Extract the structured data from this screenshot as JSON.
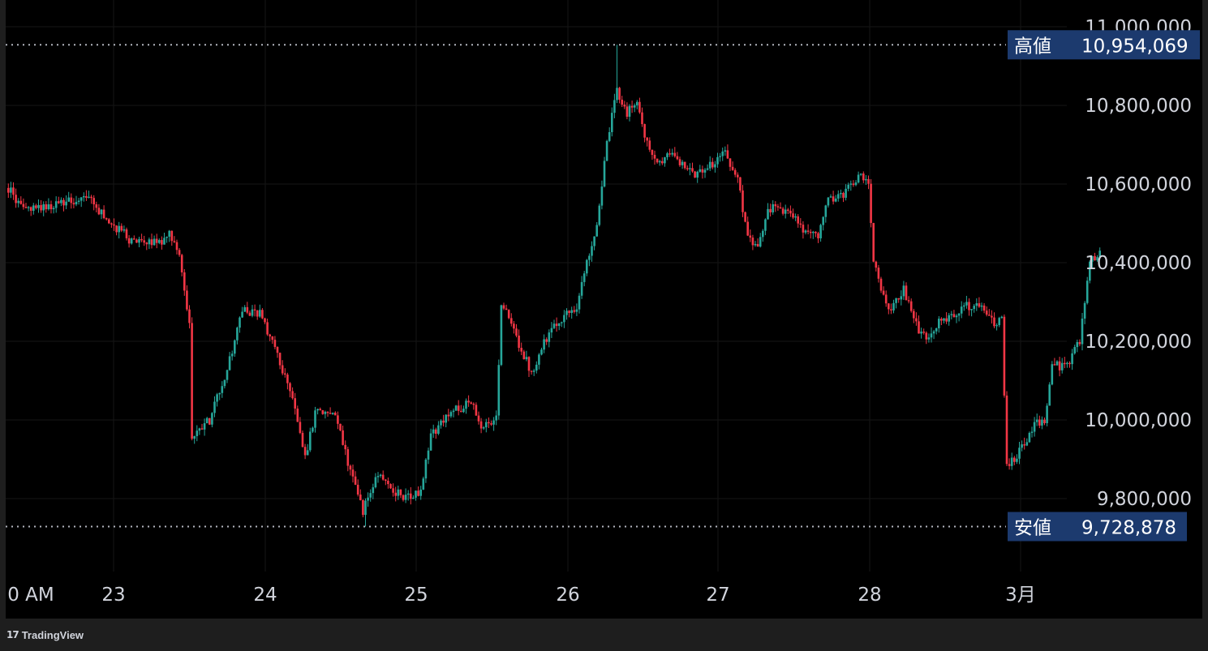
{
  "branding": {
    "logo_mark": "17",
    "logo_text": "TradingView",
    "icon": "tradingview-logo-icon"
  },
  "colors": {
    "background": "#000000",
    "frame": "#1e1e1e",
    "up": "#26a69a",
    "down": "#f23645",
    "axis_text": "#d1d4dc",
    "grid": "#161616",
    "badge_bg": "#1c3a6e",
    "dotted_line": "#b2b5be"
  },
  "chart_data": {
    "type": "candlestick",
    "price_axis": {
      "ticks": [
        11000000,
        10800000,
        10600000,
        10400000,
        10200000,
        10000000,
        9800000
      ],
      "tick_labels": [
        "11,000,000",
        "10,800,000",
        "10,600,000",
        "10,400,000",
        "10,200,000",
        "10,000,000",
        "9,800,000"
      ]
    },
    "time_axis": {
      "labels": [
        "0 AM",
        "23",
        "24",
        "25",
        "26",
        "27",
        "28",
        "3月"
      ]
    },
    "high": {
      "label": "高値",
      "value": 10954069,
      "value_text": "10,954,069"
    },
    "low": {
      "label": "安値",
      "value": 9728878,
      "value_text": "9,728,878"
    },
    "anchors": [
      [
        0,
        10590000
      ],
      [
        6,
        10530000
      ],
      [
        20,
        10550000
      ],
      [
        32,
        10570000
      ],
      [
        36,
        10530000
      ],
      [
        48,
        10460000
      ],
      [
        60,
        10450000
      ],
      [
        64,
        10470000
      ],
      [
        68,
        10420000
      ],
      [
        72,
        10250000
      ],
      [
        73,
        9950000
      ],
      [
        80,
        10000000
      ],
      [
        88,
        10150000
      ],
      [
        93,
        10280000
      ],
      [
        100,
        10270000
      ],
      [
        106,
        10180000
      ],
      [
        112,
        10080000
      ],
      [
        118,
        9900000
      ],
      [
        122,
        10020000
      ],
      [
        130,
        10010000
      ],
      [
        136,
        9870000
      ],
      [
        141,
        9770000
      ],
      [
        147,
        9860000
      ],
      [
        153,
        9820000
      ],
      [
        160,
        9800000
      ],
      [
        164,
        9820000
      ],
      [
        168,
        9960000
      ],
      [
        176,
        10020000
      ],
      [
        184,
        10050000
      ],
      [
        188,
        9980000
      ],
      [
        194,
        10000000
      ],
      [
        196,
        10300000
      ],
      [
        202,
        10210000
      ],
      [
        208,
        10120000
      ],
      [
        213,
        10200000
      ],
      [
        220,
        10260000
      ],
      [
        226,
        10290000
      ],
      [
        230,
        10400000
      ],
      [
        234,
        10500000
      ],
      [
        238,
        10700000
      ],
      [
        242,
        10840000
      ],
      [
        246,
        10780000
      ],
      [
        250,
        10810000
      ],
      [
        254,
        10700000
      ],
      [
        258,
        10650000
      ],
      [
        264,
        10680000
      ],
      [
        272,
        10620000
      ],
      [
        278,
        10640000
      ],
      [
        284,
        10680000
      ],
      [
        290,
        10620000
      ],
      [
        294,
        10460000
      ],
      [
        298,
        10430000
      ],
      [
        302,
        10540000
      ],
      [
        310,
        10530000
      ],
      [
        316,
        10480000
      ],
      [
        322,
        10470000
      ],
      [
        326,
        10560000
      ],
      [
        332,
        10570000
      ],
      [
        338,
        10620000
      ],
      [
        342,
        10600000
      ],
      [
        344,
        10400000
      ],
      [
        350,
        10280000
      ],
      [
        356,
        10330000
      ],
      [
        362,
        10230000
      ],
      [
        366,
        10210000
      ],
      [
        370,
        10250000
      ],
      [
        376,
        10270000
      ],
      [
        380,
        10290000
      ],
      [
        386,
        10290000
      ],
      [
        392,
        10250000
      ],
      [
        395,
        10250000
      ],
      [
        397,
        9880000
      ],
      [
        402,
        9920000
      ],
      [
        408,
        9990000
      ],
      [
        412,
        9990000
      ],
      [
        415,
        10150000
      ],
      [
        420,
        10130000
      ],
      [
        426,
        10200000
      ],
      [
        430,
        10400000
      ],
      [
        434,
        10420000
      ]
    ]
  }
}
